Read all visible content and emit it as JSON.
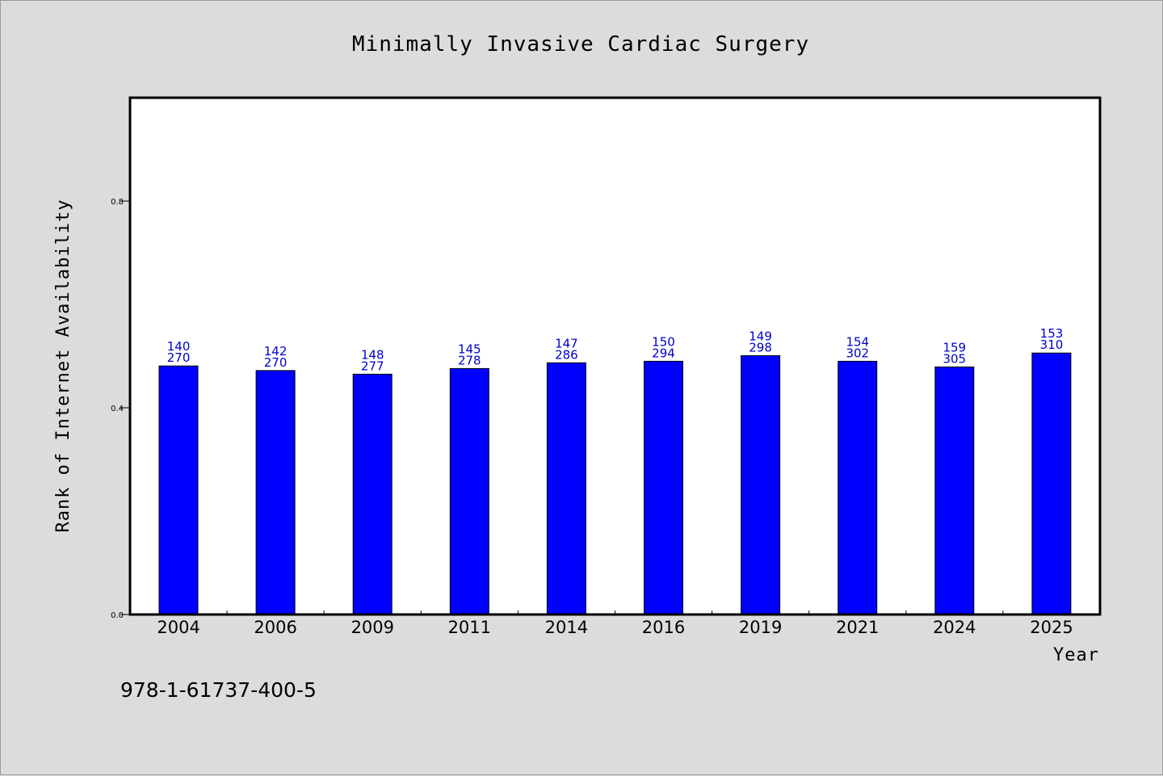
{
  "chart_data": {
    "type": "bar",
    "title": "Minimally Invasive Cardiac Surgery",
    "xlabel": "Year",
    "ylabel": "Rank of Internet Availability",
    "ylim": [
      0,
      1.0
    ],
    "yticks": [
      0.0,
      0.4,
      0.8
    ],
    "ytick_labels": [
      "0.0",
      "0.4",
      "0.8"
    ],
    "grid": false,
    "categories": [
      "2004",
      "2006",
      "2009",
      "2011",
      "2014",
      "2016",
      "2019",
      "2021",
      "2024",
      "2025"
    ],
    "values": [
      0.481,
      0.472,
      0.465,
      0.476,
      0.487,
      0.49,
      0.501,
      0.49,
      0.479,
      0.506
    ],
    "labels_top": [
      "140",
      "142",
      "148",
      "145",
      "147",
      "150",
      "149",
      "154",
      "159",
      "153"
    ],
    "labels_bottom": [
      "270",
      "270",
      "277",
      "278",
      "286",
      "294",
      "298",
      "302",
      "305",
      "310"
    ],
    "bar_color": "#0000ff",
    "label_color": "#0000cc"
  },
  "footer": {
    "isbn": "978-1-61737-400-5"
  }
}
